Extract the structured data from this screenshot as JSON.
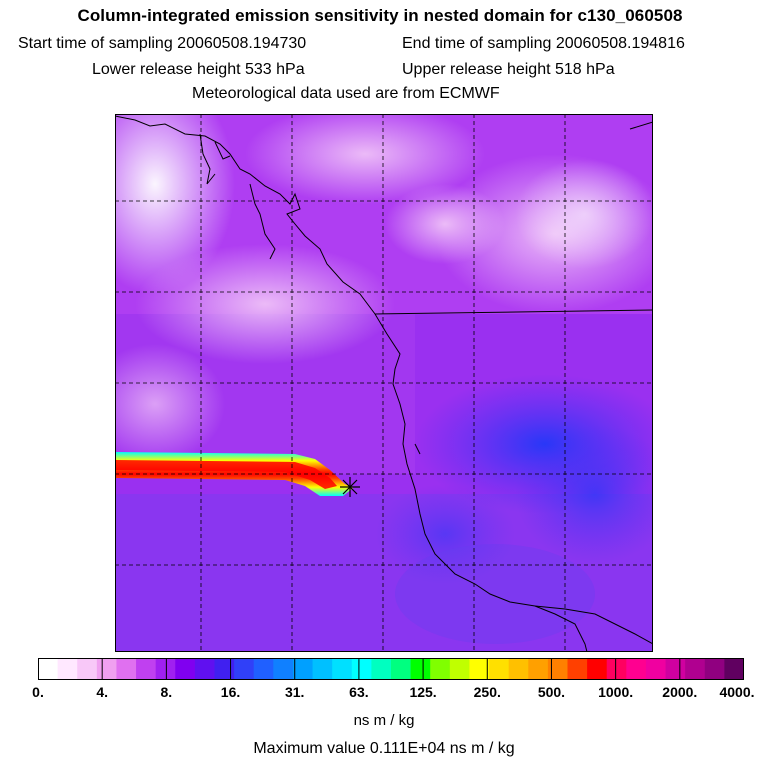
{
  "header": {
    "title": "Column-integrated emission sensitivity in nested domain for c130_060508",
    "start_time": "Start time of sampling 20060508.194730",
    "end_time": "End time of sampling 20060508.194816",
    "lower_height": "Lower release height  533 hPa",
    "upper_height": "Upper release height  518 hPa",
    "met_data": "Meteorological data used are from ECMWF"
  },
  "legend": {
    "ticks": [
      "0.",
      "4.",
      "8.",
      "16.",
      "31.",
      "63.",
      "125.",
      "250.",
      "500.",
      "1000.",
      "2000.",
      "4000."
    ],
    "units": "ns m / kg",
    "colors": [
      "#ffffff",
      "#ffe8ff",
      "#f8c8f8",
      "#f0a0f0",
      "#e070f0",
      "#c040f0",
      "#a020f0",
      "#8000f0",
      "#6010f0",
      "#4020f0",
      "#3040f8",
      "#2060ff",
      "#1080ff",
      "#00a0ff",
      "#00c0ff",
      "#00e0ff",
      "#00ffff",
      "#00ffc0",
      "#00ff80",
      "#00ff00",
      "#80ff00",
      "#c0ff00",
      "#ffff00",
      "#ffe000",
      "#ffc000",
      "#ffa000",
      "#ff8000",
      "#ff4000",
      "#ff0000",
      "#ff0060",
      "#ff0090",
      "#f000a0",
      "#d000a0",
      "#b00090",
      "#900080",
      "#600060"
    ]
  },
  "footer": {
    "max_value": "Maximum value  0.111E+04 ns m / kg"
  }
}
